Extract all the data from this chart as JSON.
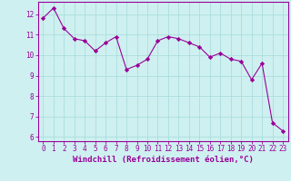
{
  "x": [
    0,
    1,
    2,
    3,
    4,
    5,
    6,
    7,
    8,
    9,
    10,
    11,
    12,
    13,
    14,
    15,
    16,
    17,
    18,
    19,
    20,
    21,
    22,
    23
  ],
  "y": [
    11.8,
    12.3,
    11.3,
    10.8,
    10.7,
    10.2,
    10.6,
    10.9,
    9.3,
    9.5,
    9.8,
    10.7,
    10.9,
    10.8,
    10.6,
    10.4,
    9.9,
    10.1,
    9.8,
    9.7,
    8.8,
    9.6,
    6.7,
    6.3
  ],
  "line_color": "#990099",
  "marker_color": "#990099",
  "bg_color": "#cff0f0",
  "grid_color": "#aadddd",
  "xlabel": "Windchill (Refroidissement éolien,°C)",
  "xlim": [
    -0.5,
    23.5
  ],
  "ylim": [
    5.8,
    12.6
  ],
  "yticks": [
    6,
    7,
    8,
    9,
    10,
    11,
    12
  ],
  "xticks": [
    0,
    1,
    2,
    3,
    4,
    5,
    6,
    7,
    8,
    9,
    10,
    11,
    12,
    13,
    14,
    15,
    16,
    17,
    18,
    19,
    20,
    21,
    22,
    23
  ],
  "xlabel_color": "#990099",
  "tick_color": "#990099",
  "spine_color": "#990099",
  "label_fontsize": 6.5,
  "tick_fontsize": 5.5
}
